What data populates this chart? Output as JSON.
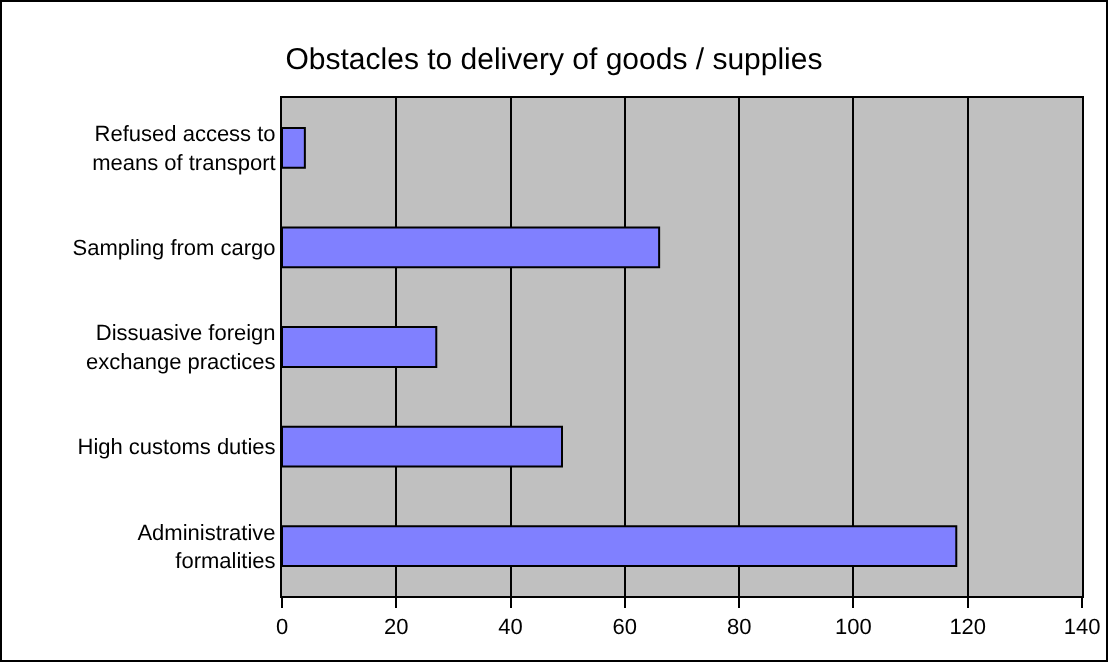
{
  "chart_data": {
    "type": "bar",
    "orientation": "horizontal",
    "title": "Obstacles to delivery of goods / supplies",
    "categories": [
      "Refused access to\nmeans of transport",
      "Sampling from cargo",
      "Dissuasive foreign\nexchange practices",
      "High customs duties",
      "Administrative\nformalities"
    ],
    "values": [
      4,
      66,
      27,
      49,
      118
    ],
    "color": "#8080ff",
    "xlim": [
      0,
      140
    ],
    "xticks": [
      0,
      20,
      40,
      60,
      80,
      100,
      120,
      140
    ],
    "grid": "x"
  }
}
